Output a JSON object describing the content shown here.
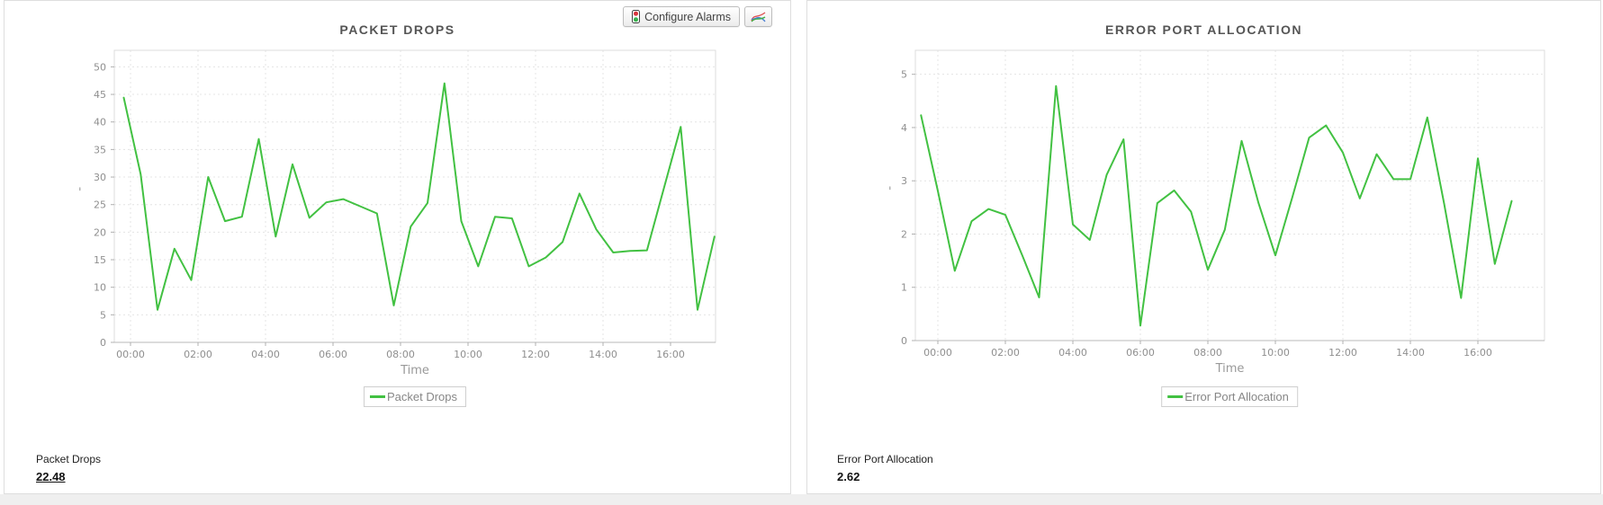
{
  "toolbar": {
    "configure_alarms_label": "Configure Alarms",
    "icons": [
      {
        "name": "traffic-light-icon",
        "colors": [
          "#d9363e",
          "#37b24d"
        ]
      },
      {
        "name": "multi-series-chart-icon",
        "colors": [
          "#e05252",
          "#3fae49",
          "#4a7fd4"
        ]
      }
    ]
  },
  "colors": {
    "series_green": "#42c142",
    "grid": "#e4e4e4",
    "plot_border": "#dcdcdc",
    "axis": "#b8b8b8",
    "title_text": "#555555",
    "tick_text": "#8f8f8f",
    "axis_title_text": "#999999",
    "legend_text": "#878787"
  },
  "panels": [
    {
      "summary_label": "Packet Drops",
      "summary_value": "22.48"
    },
    {
      "summary_label": "Error Port Allocation",
      "summary_value": "2.62"
    }
  ],
  "chart_data": [
    {
      "type": "line",
      "title": "PACKET DROPS",
      "xlabel": "Time",
      "ylabel": "'",
      "legend": "Packet Drops",
      "legend_position": "bottom",
      "grid": true,
      "line_color": "#42c142",
      "x_unit": "hours",
      "x_start_hour": -0.2,
      "x_step_hours": 0.5,
      "x_tick_hours": [
        0,
        2,
        4,
        6,
        8,
        10,
        12,
        14,
        16
      ],
      "x_tick_labels": [
        "00:00",
        "02:00",
        "04:00",
        "06:00",
        "08:00",
        "10:00",
        "12:00",
        "14:00",
        "16:00"
      ],
      "y_ticks": [
        0,
        5,
        10,
        15,
        20,
        25,
        30,
        35,
        40,
        45,
        50
      ],
      "ylim": [
        0,
        53
      ],
      "xlim": [
        -0.48,
        17.35
      ],
      "values": [
        44.4,
        30.5,
        5.9,
        17.0,
        11.3,
        30.0,
        22.0,
        22.8,
        36.9,
        19.2,
        32.3,
        22.6,
        25.4,
        26.0,
        24.7,
        23.4,
        6.7,
        21.0,
        25.3,
        47.0,
        22.0,
        13.8,
        22.8,
        22.5,
        13.8,
        15.4,
        18.2,
        27.0,
        20.5,
        16.3,
        16.6,
        16.7,
        27.9,
        39.1,
        5.9,
        19.2
      ]
    },
    {
      "type": "line",
      "title": "ERROR PORT ALLOCATION",
      "xlabel": "Time",
      "ylabel": "'",
      "legend": "Error Port Allocation",
      "legend_position": "bottom",
      "grid": true,
      "line_color": "#42c142",
      "x_unit": "hours",
      "x_start_hour": -0.5,
      "x_step_hours": 0.5,
      "x_tick_hours": [
        0,
        2,
        4,
        6,
        8,
        10,
        12,
        14,
        16
      ],
      "x_tick_labels": [
        "00:00",
        "02:00",
        "04:00",
        "06:00",
        "08:00",
        "10:00",
        "12:00",
        "14:00",
        "16:00"
      ],
      "y_ticks": [
        0,
        1,
        2,
        3,
        4,
        5
      ],
      "ylim": [
        0,
        5.45
      ],
      "xlim": [
        -0.67,
        17.97
      ],
      "values": [
        4.23,
        2.81,
        1.31,
        2.24,
        2.47,
        2.36,
        1.6,
        0.81,
        4.78,
        2.18,
        1.89,
        3.11,
        3.78,
        0.28,
        2.58,
        2.82,
        2.42,
        1.33,
        2.08,
        3.75,
        2.58,
        1.6,
        2.69,
        3.81,
        4.04,
        3.53,
        2.67,
        3.5,
        3.03,
        3.03,
        4.19,
        2.57,
        0.8,
        3.42,
        1.44,
        2.62
      ]
    }
  ]
}
